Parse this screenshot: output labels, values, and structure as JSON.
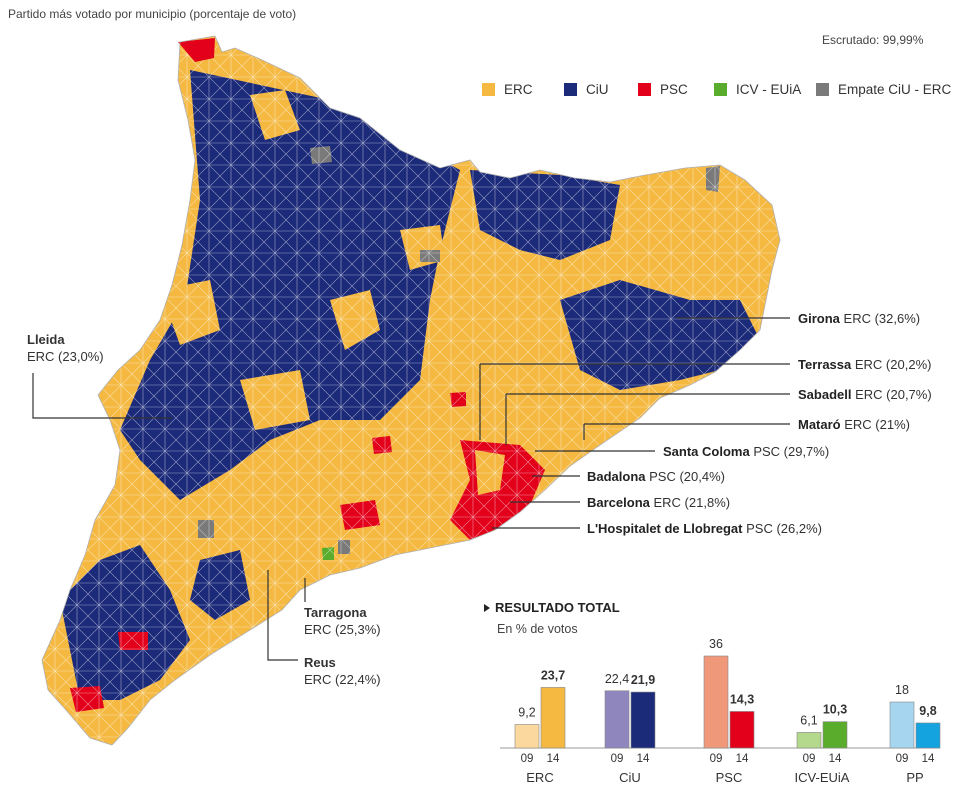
{
  "header": {
    "title": "Partido más votado por municipio (porcentaje de voto)",
    "scrutiny": "Escrutado: 99,99%"
  },
  "legend": [
    {
      "label": "ERC",
      "color": "#f5b942"
    },
    {
      "label": "CiU",
      "color": "#1c2a7a"
    },
    {
      "label": "PSC",
      "color": "#e2001a"
    },
    {
      "label": "ICV - EUiA",
      "color": "#5aac2c"
    },
    {
      "label": "Empate CiU - ERC",
      "color": "#7a7a7a"
    }
  ],
  "cities": {
    "lleida": {
      "name": "Lleida",
      "result": "ERC (23,0%)"
    },
    "tarragona": {
      "name": "Tarragona",
      "result": "ERC (25,3%)"
    },
    "reus": {
      "name": "Reus",
      "result": "ERC (22,4%)"
    }
  },
  "callouts": [
    {
      "name": "Girona",
      "result": "ERC (32,6%)"
    },
    {
      "name": "Terrassa",
      "result": "ERC (20,2%)"
    },
    {
      "name": "Sabadell",
      "result": "ERC (20,7%)"
    },
    {
      "name": "Mataró",
      "result": "ERC (21%)"
    },
    {
      "name": "Santa Coloma",
      "result": "PSC (29,7%)"
    },
    {
      "name": "Badalona",
      "result": "PSC (20,4%)"
    },
    {
      "name": "Barcelona",
      "result": "ERC (21,8%)"
    },
    {
      "name": "L'Hospitalet de Llobregat",
      "result": "PSC (26,2%)"
    }
  ],
  "results": {
    "heading": "RESULTADO TOTAL",
    "subheading": "En % de votos"
  },
  "chart_data": {
    "type": "bar",
    "title": "RESULTADO TOTAL",
    "ylabel": "En % de votos",
    "ylim": [
      0,
      36
    ],
    "categories": [
      "ERC",
      "CiU",
      "PSC",
      "ICV-EUiA",
      "PP"
    ],
    "years": [
      "09",
      "14"
    ],
    "series": [
      {
        "name": "09",
        "values": [
          9.2,
          22.4,
          36,
          6.1,
          18
        ],
        "labels": [
          "9,2",
          "22,4",
          "36",
          "6,1",
          "18"
        ],
        "colors": [
          "#fbd89e",
          "#8f86bd",
          "#f0987a",
          "#b5d98c",
          "#a6d6ef"
        ]
      },
      {
        "name": "14",
        "values": [
          23.7,
          21.9,
          14.3,
          10.3,
          9.8
        ],
        "labels": [
          "23,7",
          "21,9",
          "14,3",
          "10,3",
          "9,8"
        ],
        "colors": [
          "#f5b942",
          "#1c2a7a",
          "#e2001a",
          "#5aac2c",
          "#14a3df"
        ]
      }
    ]
  }
}
